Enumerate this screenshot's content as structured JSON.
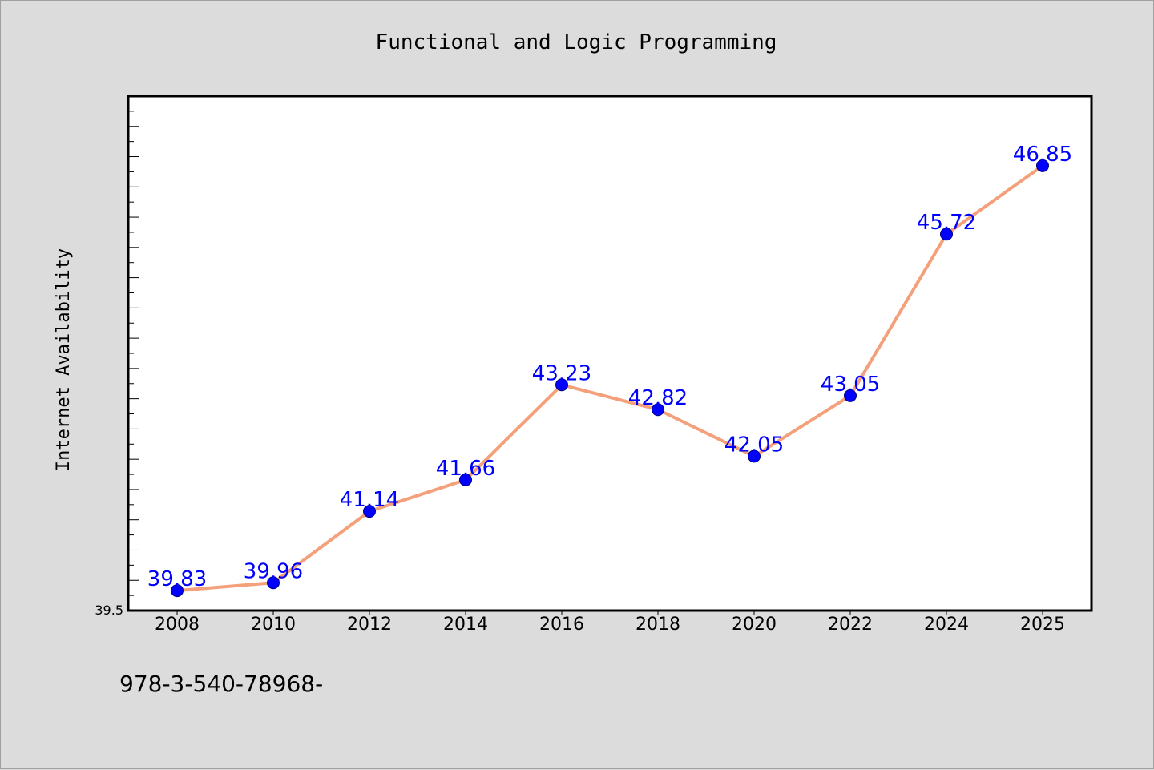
{
  "chart_data": {
    "type": "line",
    "title": "Functional and Logic Programming",
    "xlabel": "",
    "ylabel": "Internet Availability",
    "categories": [
      "2008",
      "2010",
      "2012",
      "2014",
      "2016",
      "2018",
      "2020",
      "2022",
      "2024",
      "2025"
    ],
    "series": [
      {
        "values": [
          39.83,
          39.96,
          41.14,
          41.66,
          43.23,
          42.82,
          42.05,
          43.05,
          45.72,
          46.85
        ],
        "labels": [
          "39.83",
          "39.96",
          "41.14",
          "41.66",
          "43.23",
          "42.82",
          "42.05",
          "43.05",
          "45.72",
          "46.85"
        ],
        "line_color": "#f4a07a",
        "marker_color": "#0000ff"
      }
    ],
    "ylim": [
      39.5,
      48.0
    ],
    "yticks": [
      "39.5"
    ],
    "grid": false,
    "legend": "none"
  },
  "footer_text": "978-3-540-78968-",
  "colors": {
    "background": "#dcdcdc",
    "plot_background": "#ffffff",
    "label_color": "#0000ff"
  }
}
